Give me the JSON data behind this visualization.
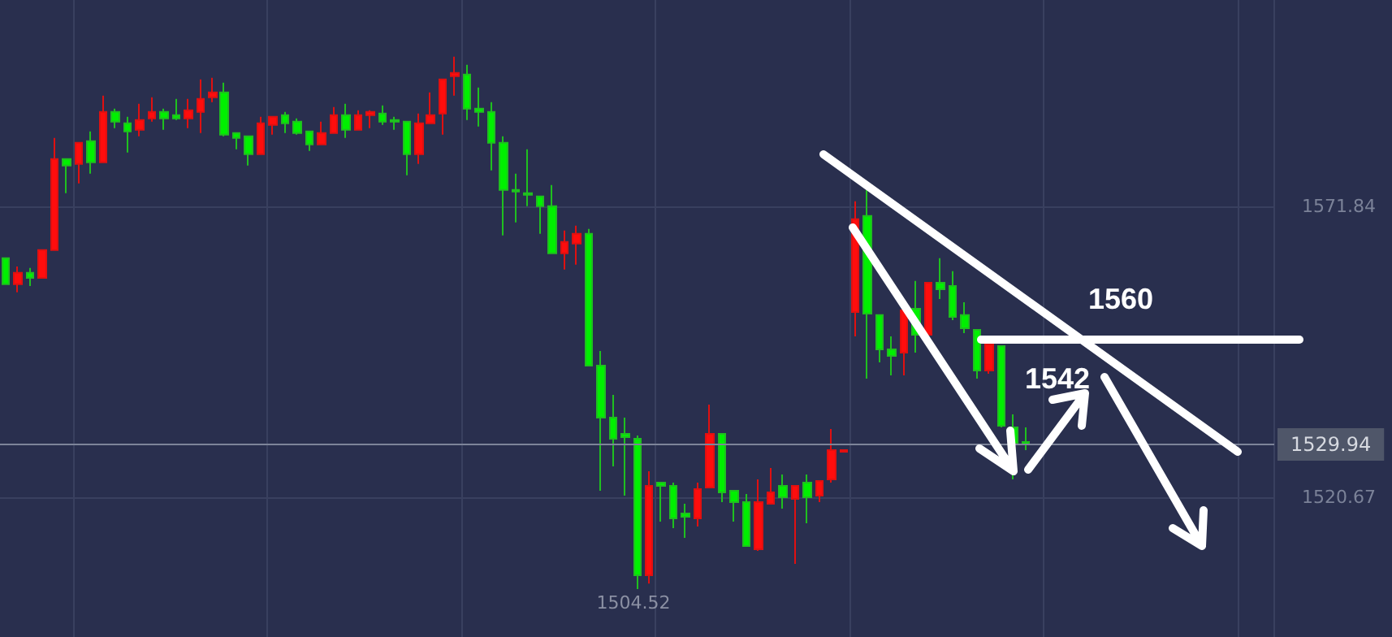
{
  "chart_data": {
    "type": "candlestick",
    "categories": [
      null,
      null,
      null,
      null,
      null,
      null,
      null,
      null,
      null,
      null,
      null,
      null,
      null,
      null,
      null,
      null,
      null,
      null,
      null,
      null,
      null,
      null,
      null,
      null,
      null,
      null,
      null,
      null,
      null,
      null,
      null,
      null,
      null,
      null,
      null,
      null,
      null,
      null,
      null,
      null,
      null,
      null,
      null,
      null,
      null,
      null,
      null,
      null,
      null,
      null,
      null,
      null,
      null,
      null,
      null,
      null,
      null,
      null,
      null,
      null,
      null,
      null,
      null,
      null,
      null,
      null,
      null,
      null,
      null,
      null,
      null,
      null,
      null,
      null,
      null,
      null,
      null,
      null,
      null,
      null,
      null,
      null,
      null,
      null,
      null,
      null,
      null,
      null,
      null,
      null,
      null,
      null,
      null,
      null,
      null,
      null,
      null,
      null,
      null,
      null,
      null,
      null,
      null,
      null,
      null
    ],
    "ohlc": [
      [
        1562.69,
        1562.69,
        1558.12,
        1558.12
      ],
      [
        1558.12,
        1561.26,
        1556.69,
        1560.12
      ],
      [
        1560.12,
        1560.98,
        1557.83,
        1559.26
      ],
      [
        1559.26,
        1564.12,
        1559.26,
        1564.12
      ],
      [
        1564.12,
        1583.85,
        1564.12,
        1580.13
      ],
      [
        1580.13,
        1580.13,
        1574.13,
        1578.99
      ],
      [
        1579.27,
        1583.0,
        1575.84,
        1583.0
      ],
      [
        1583.28,
        1585.0,
        1577.56,
        1579.56
      ],
      [
        1579.56,
        1591.28,
        1579.56,
        1588.42
      ],
      [
        1588.42,
        1589.0,
        1585.57,
        1586.71
      ],
      [
        1586.42,
        1587.57,
        1581.28,
        1585.0
      ],
      [
        1585.28,
        1589.85,
        1584.14,
        1587.0
      ],
      [
        1587.28,
        1591.0,
        1586.71,
        1588.42
      ],
      [
        1588.42,
        1589.0,
        1585.28,
        1587.28
      ],
      [
        1587.85,
        1590.71,
        1587.0,
        1587.28
      ],
      [
        1587.28,
        1590.71,
        1585.57,
        1588.71
      ],
      [
        1588.42,
        1594.14,
        1584.71,
        1590.71
      ],
      [
        1591.0,
        1594.42,
        1590.14,
        1591.85
      ],
      [
        1591.85,
        1593.57,
        1584.14,
        1584.42
      ],
      [
        1584.71,
        1584.71,
        1581.85,
        1583.85
      ],
      [
        1584.14,
        1584.14,
        1578.99,
        1580.99
      ],
      [
        1580.99,
        1587.57,
        1580.99,
        1586.42
      ],
      [
        1586.14,
        1587.57,
        1584.42,
        1587.57
      ],
      [
        1587.85,
        1588.42,
        1584.71,
        1586.42
      ],
      [
        1586.71,
        1587.28,
        1584.42,
        1584.71
      ],
      [
        1585.0,
        1585.0,
        1581.56,
        1582.71
      ],
      [
        1582.71,
        1586.71,
        1582.71,
        1584.71
      ],
      [
        1584.71,
        1589.28,
        1584.71,
        1587.85
      ],
      [
        1587.85,
        1589.85,
        1583.85,
        1585.28
      ],
      [
        1585.28,
        1588.71,
        1585.28,
        1587.85
      ],
      [
        1587.85,
        1588.71,
        1585.57,
        1588.42
      ],
      [
        1588.14,
        1589.57,
        1586.14,
        1586.71
      ],
      [
        1587.0,
        1587.57,
        1585.28,
        1586.71
      ],
      [
        1586.71,
        1586.71,
        1577.27,
        1580.99
      ],
      [
        1580.99,
        1588.14,
        1579.27,
        1586.42
      ],
      [
        1586.42,
        1591.85,
        1586.42,
        1587.85
      ],
      [
        1588.14,
        1594.14,
        1584.42,
        1594.14
      ],
      [
        1594.71,
        1598.14,
        1591.28,
        1595.28
      ],
      [
        1594.99,
        1596.71,
        1587.0,
        1589.0
      ],
      [
        1589.0,
        1592.71,
        1585.85,
        1588.42
      ],
      [
        1588.42,
        1590.14,
        1578.13,
        1583.0
      ],
      [
        1583.0,
        1584.14,
        1566.7,
        1574.7
      ],
      [
        1574.7,
        1577.56,
        1568.98,
        1574.41
      ],
      [
        1574.13,
        1581.85,
        1571.84,
        1573.84
      ],
      [
        1573.56,
        1573.56,
        1566.98,
        1571.84
      ],
      [
        1571.84,
        1575.56,
        1563.55,
        1563.55
      ],
      [
        1563.55,
        1567.55,
        1560.69,
        1565.55
      ],
      [
        1565.27,
        1568.41,
        1561.55,
        1566.98
      ],
      [
        1566.98,
        1567.84,
        1543.82,
        1543.82
      ],
      [
        1543.82,
        1546.4,
        1521.81,
        1534.68
      ],
      [
        1534.68,
        1538.67,
        1526.1,
        1530.96
      ],
      [
        1531.82,
        1534.68,
        1520.95,
        1531.24
      ],
      [
        1530.96,
        1531.53,
        1504.52,
        1506.94
      ],
      [
        1506.94,
        1525.24,
        1505.51,
        1522.67
      ],
      [
        1523.24,
        1523.24,
        1516.38,
        1522.67
      ],
      [
        1522.67,
        1523.24,
        1515.23,
        1516.95
      ],
      [
        1517.8,
        1519.52,
        1513.52,
        1517.23
      ],
      [
        1516.95,
        1523.24,
        1515.52,
        1522.09
      ],
      [
        1522.38,
        1536.96,
        1522.38,
        1531.82
      ],
      [
        1531.82,
        1531.82,
        1519.81,
        1521.52
      ],
      [
        1521.81,
        1521.81,
        1516.38,
        1519.81
      ],
      [
        1519.81,
        1521.24,
        1512.09,
        1512.09
      ],
      [
        1511.52,
        1523.81,
        1511.23,
        1519.81
      ],
      [
        1519.52,
        1525.81,
        1519.52,
        1521.52
      ],
      [
        1522.67,
        1524.67,
        1518.66,
        1520.67
      ],
      [
        1520.38,
        1522.67,
        1508.94,
        1522.67
      ],
      [
        1523.24,
        1524.67,
        1516.09,
        1520.67
      ],
      [
        1520.95,
        1523.53,
        1519.81,
        1523.53
      ],
      [
        1523.81,
        1532.67,
        1523.24,
        1528.96
      ],
      [
        1528.67,
        1528.96,
        1528.67,
        1528.96
      ],
      [
        1553.26,
        1572.7,
        1548.97,
        1569.55
      ],
      [
        1570.13,
        1574.7,
        1541.54,
        1552.97
      ],
      [
        1552.69,
        1552.69,
        1544.4,
        1546.68
      ],
      [
        1546.68,
        1548.97,
        1542.11,
        1545.54
      ],
      [
        1546.11,
        1553.54,
        1542.11,
        1553.54
      ],
      [
        1553.83,
        1558.69,
        1546.11,
        1549.26
      ],
      [
        1549.26,
        1558.4,
        1549.26,
        1558.4
      ],
      [
        1558.4,
        1562.69,
        1555.54,
        1557.26
      ],
      [
        1557.83,
        1560.41,
        1551.83,
        1552.4
      ],
      [
        1552.69,
        1554.97,
        1549.54,
        1550.4
      ],
      [
        1550.11,
        1550.11,
        1541.54,
        1542.97
      ],
      [
        1542.97,
        1548.11,
        1542.39,
        1547.54
      ],
      [
        1547.25,
        1547.25,
        1532.96,
        1533.25
      ],
      [
        1532.96,
        1535.25,
        1523.81,
        1530.1
      ],
      [
        1530.39,
        1532.96,
        1528.96,
        1529.94
      ],
      null,
      null,
      null,
      null,
      null,
      null,
      null,
      null,
      null,
      null,
      null,
      null,
      null,
      null,
      null,
      null,
      null,
      null,
      null,
      null
    ],
    "ylim": [
      1496.1,
      1608.1
    ],
    "yticks": [
      1520.67,
      1571.84
    ],
    "grid": true,
    "tick_labels": "y",
    "ref_lines": [
      {
        "axis": "y",
        "value": 1529.94,
        "label": "1529.94"
      }
    ],
    "annotations": [
      "1504.52",
      "1560",
      "1542"
    ]
  }
}
